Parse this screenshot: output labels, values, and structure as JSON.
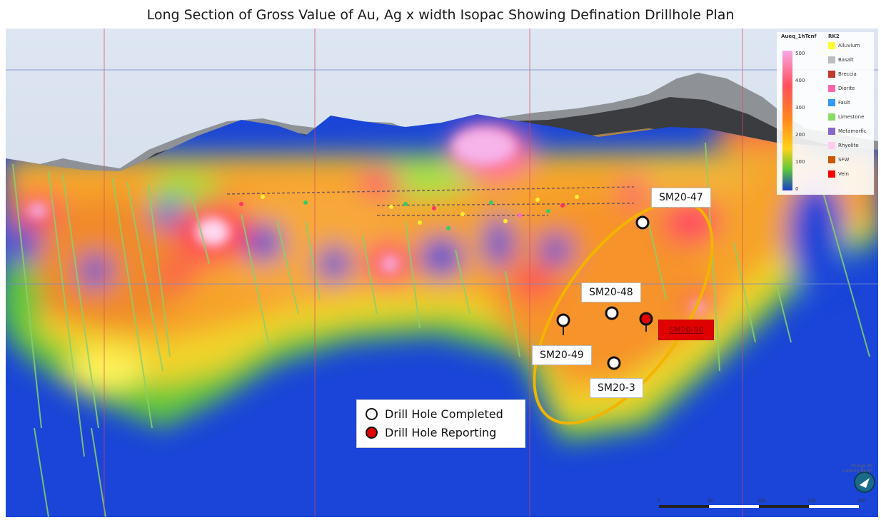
{
  "title": "Long Section of Gross Value of Au, Ag x width Isopac Showing Defination Drillhole Plan",
  "drill_holes": [
    {
      "label": "SM20-47",
      "status": "completed"
    },
    {
      "label": "SM20-48",
      "status": "completed"
    },
    {
      "label": "SM20-49",
      "status": "completed"
    },
    {
      "label": "SM20-3",
      "status": "completed"
    },
    {
      "label": "SM20-50",
      "status": "reporting"
    }
  ],
  "key": {
    "completed_label": "Drill Hole Completed",
    "reporting_label": "Drill Hole Reporting",
    "completed_color": "#ffffff",
    "reporting_color": "#e00000"
  },
  "legend": {
    "scale_title": "Aueq_1hTcnf",
    "scale_ticks": [
      "500",
      "400",
      "300",
      "200",
      "100",
      "0"
    ],
    "rock_title": "RK2",
    "rock_types": [
      {
        "name": "Alluvium",
        "color": "#ffff33"
      },
      {
        "name": "Basalt",
        "color": "#bdbdbd"
      },
      {
        "name": "Breccia",
        "color": "#c0392b"
      },
      {
        "name": "Diorite",
        "color": "#ff66aa"
      },
      {
        "name": "Fault",
        "color": "#3399ff"
      },
      {
        "name": "Limestone",
        "color": "#88dd66"
      },
      {
        "name": "Metamorfic",
        "color": "#8866cc"
      },
      {
        "name": "Rhyolite",
        "color": "#ffccee"
      },
      {
        "name": "SFW",
        "color": "#cc5500"
      },
      {
        "name": "Vein",
        "color": "#ff0000"
      }
    ]
  },
  "scale_bar": {
    "ticks": [
      "0",
      "50",
      "100",
      "150",
      "200"
    ]
  },
  "view_note": "Plunge 00 Looking North",
  "ring_color": "#f2b400"
}
